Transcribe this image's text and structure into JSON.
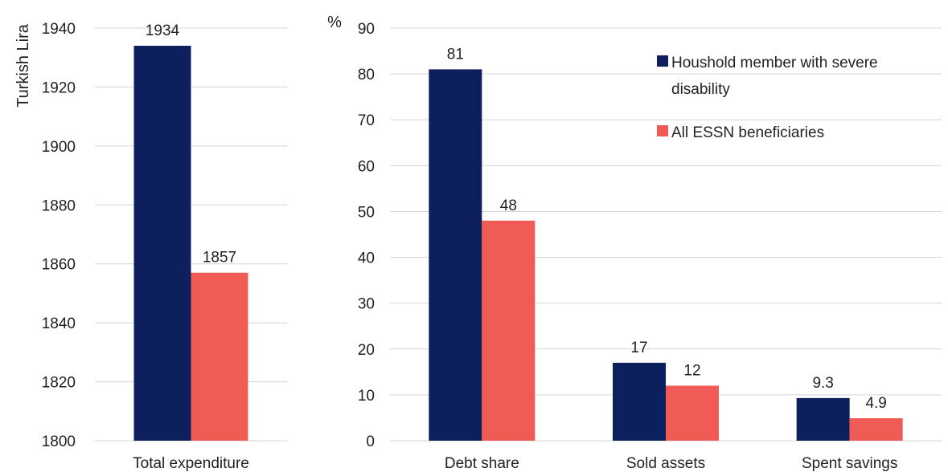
{
  "colors": {
    "series_1": "#0d1f5c",
    "series_2": "#f05c55",
    "grid": "#d4d4d4"
  },
  "chart_data": [
    {
      "type": "bar",
      "categories": [
        "Total expenditure"
      ],
      "series": [
        {
          "name": "Houshold member with severe disability",
          "values": [
            1934
          ]
        },
        {
          "name": "All ESSN beneficiaries",
          "values": [
            1857
          ]
        }
      ],
      "ylabel": "Turkish Lira",
      "ylim": [
        1800,
        1940
      ],
      "yticks": [
        1800,
        1820,
        1840,
        1860,
        1880,
        1900,
        1920,
        1940
      ],
      "grid": true
    },
    {
      "type": "bar",
      "categories": [
        "Debt share",
        "Sold assets",
        "Spent savings"
      ],
      "series": [
        {
          "name": "Houshold member with severe disability",
          "values": [
            81,
            17,
            9.3
          ]
        },
        {
          "name": "All ESSN beneficiaries",
          "values": [
            48,
            12,
            4.9
          ]
        }
      ],
      "ylabel": "%",
      "ylim": [
        0,
        90
      ],
      "yticks": [
        0,
        10,
        20,
        30,
        40,
        50,
        60,
        70,
        80,
        90
      ],
      "grid": true,
      "legend": {
        "position": "top-right",
        "entries": [
          {
            "line1": "Houshold member with severe",
            "line2": "disability"
          },
          {
            "line1": "All ESSN beneficiaries",
            "line2": ""
          }
        ]
      }
    }
  ]
}
